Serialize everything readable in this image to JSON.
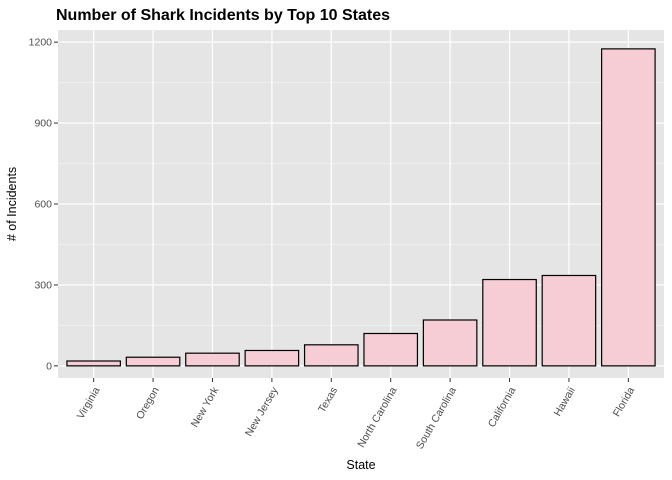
{
  "chart_data": {
    "type": "bar",
    "title": "Number of Shark Incidents by Top 10 States",
    "xlabel": "State",
    "ylabel": "# of Incidents",
    "categories": [
      "Virginia",
      "Oregon",
      "New York",
      "New Jersey",
      "Texas",
      "North Carolina",
      "South Carolina",
      "California",
      "Hawaii",
      "Florida"
    ],
    "values": [
      18,
      32,
      47,
      57,
      78,
      120,
      170,
      320,
      335,
      1175
    ],
    "yticks": [
      0,
      300,
      600,
      900,
      1200
    ],
    "ytick_labels": [
      "0",
      "300",
      "600",
      "900",
      "1200"
    ],
    "ylim": [
      -45,
      1245
    ],
    "grid": true,
    "legend": "none",
    "colors": {
      "bar_fill": "#f6cdd5",
      "bar_stroke": "#000000",
      "panel_background": "#e5e5e5",
      "grid_major": "#ffffff",
      "grid_minor": "#f2f2f2"
    }
  }
}
